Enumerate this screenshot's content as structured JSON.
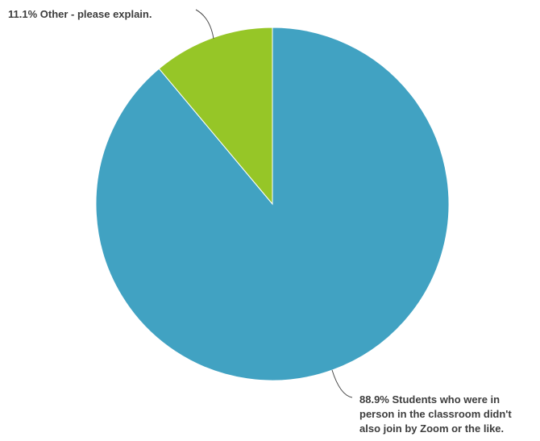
{
  "chart_data": {
    "type": "pie",
    "slices": [
      {
        "label_lines": [
          "88.9% Students who were in",
          "person in the classroom didn't",
          "also join by Zoom or the like."
        ],
        "value": 88.9,
        "color": "#41a2c2"
      },
      {
        "label_lines": [
          "11.1% Other - please explain."
        ],
        "value": 11.1,
        "color": "#96c627"
      }
    ],
    "start_angle_deg": 0,
    "direction": "clockwise",
    "legend": "none"
  }
}
